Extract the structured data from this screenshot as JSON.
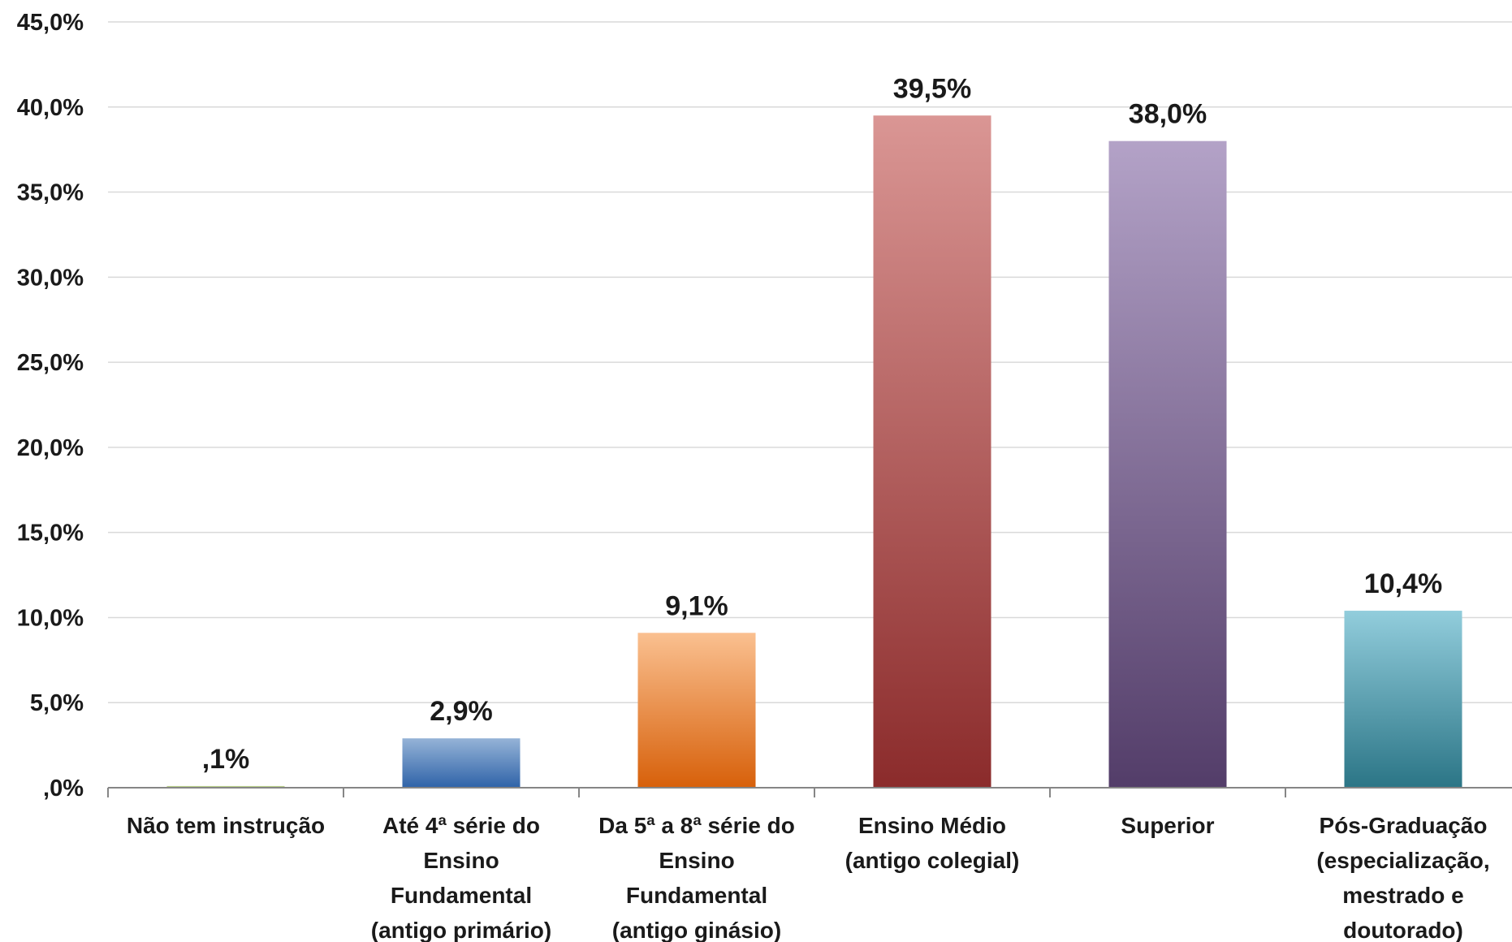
{
  "chart_data": {
    "type": "bar",
    "categories": [
      [
        "Não tem instrução"
      ],
      [
        "Até 4ª série do",
        "Ensino",
        "Fundamental",
        "(antigo primário)"
      ],
      [
        "Da 5ª a 8ª série do",
        "Ensino",
        "Fundamental",
        "(antigo ginásio)"
      ],
      [
        "Ensino Médio",
        "(antigo colegial)"
      ],
      [
        "Superior"
      ],
      [
        "Pós-Graduação",
        "(especialização,",
        "mestrado e",
        "doutorado)"
      ]
    ],
    "values": [
      0.1,
      2.9,
      9.1,
      39.5,
      38.0,
      10.4
    ],
    "data_labels": [
      ",1%",
      "2,9%",
      "9,1%",
      "39,5%",
      "38,0%",
      "10,4%"
    ],
    "ylim": [
      0,
      45
    ],
    "yticks": [
      ",0%",
      "5,0%",
      "10,0%",
      "15,0%",
      "20,0%",
      "25,0%",
      "30,0%",
      "35,0%",
      "40,0%",
      "45,0%"
    ],
    "grid": true,
    "bar_colors": [
      [
        "#c4d79b",
        "#9bbb59"
      ],
      [
        "#95b3d7",
        "#2f63a8"
      ],
      [
        "#fac090",
        "#d7600a"
      ],
      [
        "#da9694",
        "#8b2b2b"
      ],
      [
        "#b3a2c7",
        "#533d69"
      ],
      [
        "#92cddc",
        "#2b7586"
      ]
    ]
  }
}
